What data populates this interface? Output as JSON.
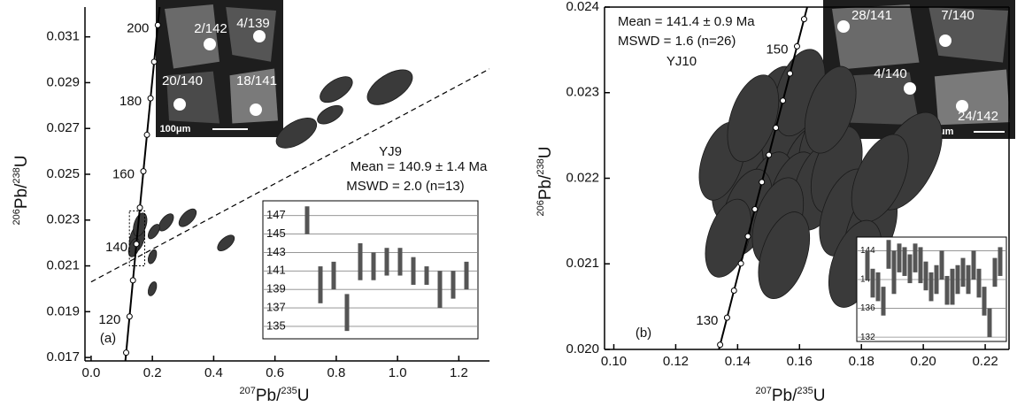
{
  "chart_data": [
    {
      "type": "concordia",
      "panel_label": "(a)",
      "sample": "YJ9",
      "mean_text": "Mean = 140.9 ± 1.4 Ma",
      "mswd_text": "MSWD = 2.0 (n=13)",
      "xlabel": [
        "207",
        "Pb/",
        "235",
        "U"
      ],
      "ylabel": [
        "206",
        "Pb/",
        "238",
        "U"
      ],
      "xlim": [
        -0.02,
        1.3
      ],
      "ylim": [
        0.01685,
        0.0323
      ],
      "xticks": [
        {
          "value": 0,
          "label": "0.0"
        },
        0.2,
        0.4,
        0.6,
        0.8,
        {
          "value": 1,
          "label": "1.0"
        },
        1.2
      ],
      "yticks": [
        0.017,
        0.019,
        0.021,
        0.023,
        0.025,
        0.027,
        0.029,
        0.031
      ],
      "box": false,
      "concordia_marks": [
        110,
        120,
        130,
        140,
        150,
        160,
        170,
        180,
        190,
        200
      ],
      "concordia_labels": [
        120,
        140,
        160,
        180,
        200
      ],
      "discordia": {
        "x": [
          0,
          1.3
        ],
        "y": [
          0.0203,
          0.0296
        ]
      },
      "zoom_box": {
        "x": [
          0.125,
          0.175
        ],
        "y": [
          0.021,
          0.0234
        ]
      },
      "ellipses": {
        "x": [
          0.67,
          0.78,
          0.8,
          0.975,
          0.44,
          0.315,
          0.245,
          0.205,
          0.15,
          0.16,
          0.14,
          0.2,
          0.2
        ],
        "y": [
          0.0268,
          0.0276,
          0.0287,
          0.0288,
          0.022,
          0.0231,
          0.0229,
          0.0225,
          0.0222,
          0.0228,
          0.0218,
          0.0214,
          0.02
        ],
        "x_err": [
          0.063,
          0.04,
          0.05,
          0.07,
          0.025,
          0.025,
          0.02,
          0.015,
          0.012,
          0.012,
          0.01,
          0.008,
          0.008
        ],
        "y_err": [
          0.0005,
          0.0003,
          0.00045,
          0.0006,
          0.0003,
          0.00035,
          0.00035,
          0.0003,
          0.0006,
          0.0005,
          0.0004,
          0.0003,
          0.0003
        ]
      },
      "images": {
        "labels": [
          "2/142",
          "4/139",
          "20/140",
          "18/141"
        ],
        "scale": "100μm"
      },
      "inset": {
        "ylim": [
          133.65,
          148.6
        ],
        "yticks": [
          135,
          137,
          139,
          141,
          143,
          145,
          147
        ],
        "values": [
          146.5,
          139.5,
          140.5,
          136.5,
          142,
          141.5,
          142,
          142,
          141,
          140.5,
          139,
          139.5,
          140.5
        ],
        "errors": [
          1.5,
          2,
          1.5,
          2,
          2,
          1.5,
          1.5,
          1.5,
          1.5,
          1,
          2,
          1.5,
          1.5
        ]
      }
    },
    {
      "type": "concordia",
      "panel_label": "(b)",
      "sample": "YJ10",
      "mean_text": "Mean = 141.4 ± 0.9 Ma",
      "mswd_text": "MSWD = 1.6 (n=26)",
      "xlabel": [
        "207",
        "Pb/",
        "235",
        "U"
      ],
      "ylabel": [
        "206",
        "Pb/",
        "238",
        "U"
      ],
      "xlim": [
        0.097,
        0.2277
      ],
      "ylim": [
        0.02,
        0.024
      ],
      "xticks": [
        {
          "value": 0.1,
          "label": "0.10"
        },
        0.12,
        0.14,
        0.16,
        0.18,
        {
          "value": 0.2,
          "label": "0.20"
        },
        0.22
      ],
      "yticks": [
        {
          "value": 0.02,
          "label": "0.020"
        },
        0.021,
        0.022,
        0.023,
        {
          "value": 0.024,
          "label": "0.024"
        }
      ],
      "box": true,
      "concordia_marks": [
        128,
        130,
        132,
        134,
        136,
        138,
        140,
        142,
        144,
        146,
        148,
        150,
        152
      ],
      "concordia_labels": [
        130,
        150
      ],
      "ellipses": {
        "x": [
          0.148,
          0.152,
          0.158,
          0.163,
          0.145,
          0.155,
          0.162,
          0.168,
          0.14,
          0.15,
          0.158,
          0.166,
          0.172,
          0.135,
          0.143,
          0.153,
          0.175,
          0.183,
          0.195,
          0.186,
          0.137,
          0.16,
          0.17,
          0.145,
          0.178,
          0.155
        ],
        "y": [
          0.0225,
          0.0228,
          0.0227,
          0.0226,
          0.0222,
          0.0223,
          0.0221,
          0.0224,
          0.022,
          0.0218,
          0.0218,
          0.0219,
          0.0221,
          0.0222,
          0.0216,
          0.0215,
          0.0216,
          0.0214,
          0.0222,
          0.022,
          0.0213,
          0.023,
          0.0228,
          0.0227,
          0.021,
          0.0211
        ],
        "x_err": [
          0.0045,
          0.0045,
          0.0045,
          0.0045,
          0.0045,
          0.0045,
          0.0045,
          0.0045,
          0.0045,
          0.0045,
          0.0045,
          0.0045,
          0.0045,
          0.004,
          0.0045,
          0.0045,
          0.005,
          0.005,
          0.008,
          0.006,
          0.004,
          0.0045,
          0.0045,
          0.0045,
          0.005,
          0.0045
        ],
        "y_err": [
          0.0005,
          0.0005,
          0.0005,
          0.0005,
          0.0005,
          0.0005,
          0.0005,
          0.0005,
          0.0005,
          0.0005,
          0.0005,
          0.0005,
          0.0005,
          0.00045,
          0.0005,
          0.0005,
          0.0005,
          0.0005,
          0.00055,
          0.0005,
          0.00045,
          0.0005,
          0.0005,
          0.0005,
          0.0005,
          0.0005
        ]
      },
      "images": {
        "labels": [
          "28/141",
          "7/140",
          "4/140",
          "24/142"
        ],
        "scale": "100μm"
      },
      "inset": {
        "ylim": [
          131.4,
          145.9
        ],
        "yticks": [
          132,
          136,
          140,
          144
        ],
        "values": [
          142,
          139.5,
          139,
          137,
          143.5,
          141,
          143,
          142.5,
          141.5,
          143,
          142,
          140.5,
          139,
          140,
          142,
          138.5,
          139,
          140,
          141,
          140,
          142,
          139.5,
          137,
          134,
          141,
          142.5
        ],
        "errors": [
          2,
          2,
          2,
          2,
          2,
          3,
          2,
          2,
          2,
          2,
          2.5,
          2,
          2,
          2,
          2,
          2,
          2.5,
          2,
          2,
          2,
          2,
          2,
          2,
          2,
          2,
          2
        ]
      }
    }
  ]
}
